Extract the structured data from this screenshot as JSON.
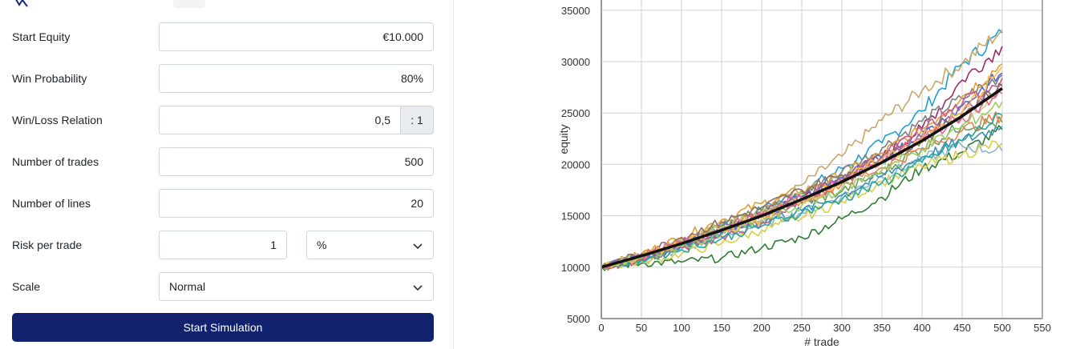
{
  "form": {
    "start_equity": {
      "label": "Start Equity",
      "value": "€10.000"
    },
    "win_probability": {
      "label": "Win Probability",
      "value": "80%"
    },
    "win_loss_relation": {
      "label": "Win/Loss Relation",
      "value": "0,5",
      "addon": ": 1"
    },
    "number_of_trades": {
      "label": "Number of trades",
      "value": "500"
    },
    "number_of_lines": {
      "label": "Number of lines",
      "value": "20"
    },
    "risk_per_trade": {
      "label": "Risk per trade",
      "value": "1",
      "unit": "%"
    },
    "scale": {
      "label": "Scale",
      "value": "Normal"
    },
    "submit_label": "Start Simulation"
  },
  "colors": {
    "button": "#12226e",
    "mean_line": "#111111"
  },
  "chart_data": {
    "type": "line",
    "xlabel": "# trade",
    "ylabel": "equity",
    "xlim": [
      0,
      550
    ],
    "ylim": [
      5000,
      36000
    ],
    "x_ticks": [
      0,
      50,
      100,
      150,
      200,
      250,
      300,
      350,
      400,
      450,
      500,
      550
    ],
    "y_ticks": [
      5000,
      10000,
      15000,
      20000,
      25000,
      30000,
      35000
    ],
    "grid": true,
    "num_lines": 20,
    "mean": {
      "x": [
        0,
        50,
        100,
        150,
        200,
        250,
        300,
        350,
        400,
        450,
        500
      ],
      "y": [
        10000,
        11100,
        12300,
        13600,
        15000,
        16600,
        18300,
        20200,
        22300,
        24700,
        27400
      ]
    },
    "series": [
      {
        "color": "#1f9fd4",
        "y": [
          10000,
          10900,
          12100,
          13900,
          15600,
          17400,
          19600,
          22100,
          25200,
          29800,
          32800
        ]
      },
      {
        "color": "#c9a76b",
        "y": [
          10000,
          11200,
          12700,
          14100,
          15400,
          18000,
          20800,
          24300,
          27200,
          29800,
          33100
        ]
      },
      {
        "color": "#9b2d6b",
        "y": [
          10000,
          11000,
          12300,
          13300,
          15100,
          16500,
          18400,
          20700,
          23500,
          28200,
          31500
        ]
      },
      {
        "color": "#7f7f7f",
        "y": [
          10000,
          10800,
          12000,
          13500,
          15500,
          17200,
          19300,
          21600,
          24200,
          26400,
          28700
        ]
      },
      {
        "color": "#e0a030",
        "y": [
          10000,
          11300,
          12900,
          14600,
          16200,
          17500,
          18900,
          21100,
          23400,
          26600,
          29800
        ]
      },
      {
        "color": "#2e7d32",
        "y": [
          10000,
          10400,
          10500,
          10900,
          11900,
          12900,
          14700,
          16800,
          19600,
          21200,
          23400
        ]
      },
      {
        "color": "#8fb7c9",
        "y": [
          10000,
          10600,
          11700,
          12900,
          14200,
          15300,
          16900,
          18800,
          20500,
          21800,
          21300
        ]
      },
      {
        "color": "#d8cf45",
        "y": [
          10000,
          10500,
          11300,
          12300,
          13600,
          14800,
          16400,
          18300,
          19800,
          21000,
          22100
        ]
      },
      {
        "color": "#6b9f5a",
        "y": [
          10000,
          10900,
          12300,
          14100,
          15500,
          16200,
          17400,
          19200,
          21600,
          23800,
          24100
        ]
      },
      {
        "color": "#a05fb0",
        "y": [
          10000,
          11000,
          12400,
          13700,
          15200,
          16800,
          18600,
          20500,
          22600,
          25100,
          27800
        ]
      },
      {
        "color": "#e8834f",
        "y": [
          10000,
          11100,
          12500,
          13800,
          15000,
          16600,
          18100,
          19700,
          21500,
          23300,
          24800
        ]
      },
      {
        "color": "#3a8fb7",
        "y": [
          10000,
          10800,
          12100,
          13300,
          14500,
          15500,
          17000,
          18900,
          20700,
          22300,
          23700
        ]
      },
      {
        "color": "#b8d27a",
        "y": [
          10000,
          11200,
          12600,
          13900,
          15400,
          17100,
          18700,
          20300,
          22100,
          24600,
          27200
        ]
      },
      {
        "color": "#c65a8a",
        "y": [
          10000,
          10700,
          11900,
          13000,
          14300,
          16300,
          18400,
          20800,
          23300,
          25900,
          28400
        ]
      },
      {
        "color": "#5c6bc0",
        "y": [
          10000,
          11000,
          12200,
          13400,
          15000,
          16900,
          18700,
          20600,
          22800,
          25700,
          28900
        ]
      },
      {
        "color": "#8d6e63",
        "y": [
          10000,
          11300,
          12900,
          14400,
          15800,
          17500,
          19000,
          20500,
          22400,
          24900,
          27600
        ]
      },
      {
        "color": "#26a69a",
        "y": [
          10000,
          10700,
          11700,
          12800,
          14000,
          15300,
          16600,
          18200,
          20200,
          22300,
          24800
        ]
      },
      {
        "color": "#f06292",
        "y": [
          10000,
          11100,
          12400,
          13700,
          15100,
          16800,
          18500,
          20400,
          22500,
          24600,
          26900
        ]
      },
      {
        "color": "#9ccc65",
        "y": [
          10000,
          10900,
          12000,
          13100,
          14500,
          16000,
          17600,
          19500,
          21500,
          23700,
          26100
        ]
      },
      {
        "color": "#ffb74d",
        "y": [
          10000,
          11000,
          12300,
          13500,
          14800,
          16500,
          18300,
          20500,
          22600,
          25000,
          29500
        ]
      }
    ]
  }
}
